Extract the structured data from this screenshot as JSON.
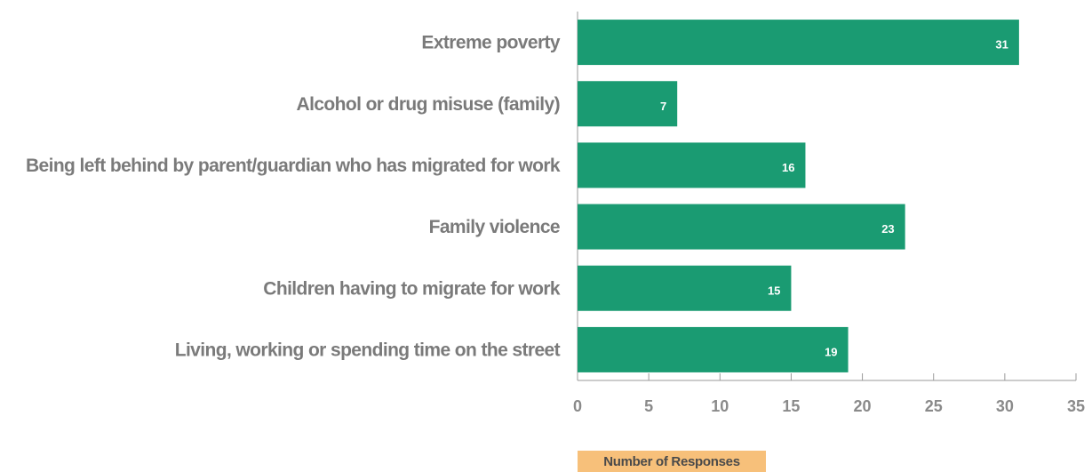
{
  "chart_data": {
    "type": "bar",
    "orientation": "horizontal",
    "categories": [
      "Extreme poverty",
      "Alcohol or drug misuse (family)",
      "Being left behind by parent/guardian who has migrated for work",
      "Family violence",
      "Children having to migrate for work",
      "Living, working or spending time on the street"
    ],
    "values": [
      31,
      7,
      16,
      23,
      15,
      19
    ],
    "x_ticks": [
      0,
      5,
      10,
      15,
      20,
      25,
      30,
      35
    ],
    "xlim": [
      0,
      35
    ],
    "grid": false,
    "legend_label": "Number of Responses",
    "legend_position": "bottom",
    "bar_color": "#1a9b72",
    "legend_color": "#f7c07a",
    "data_labels": true
  }
}
